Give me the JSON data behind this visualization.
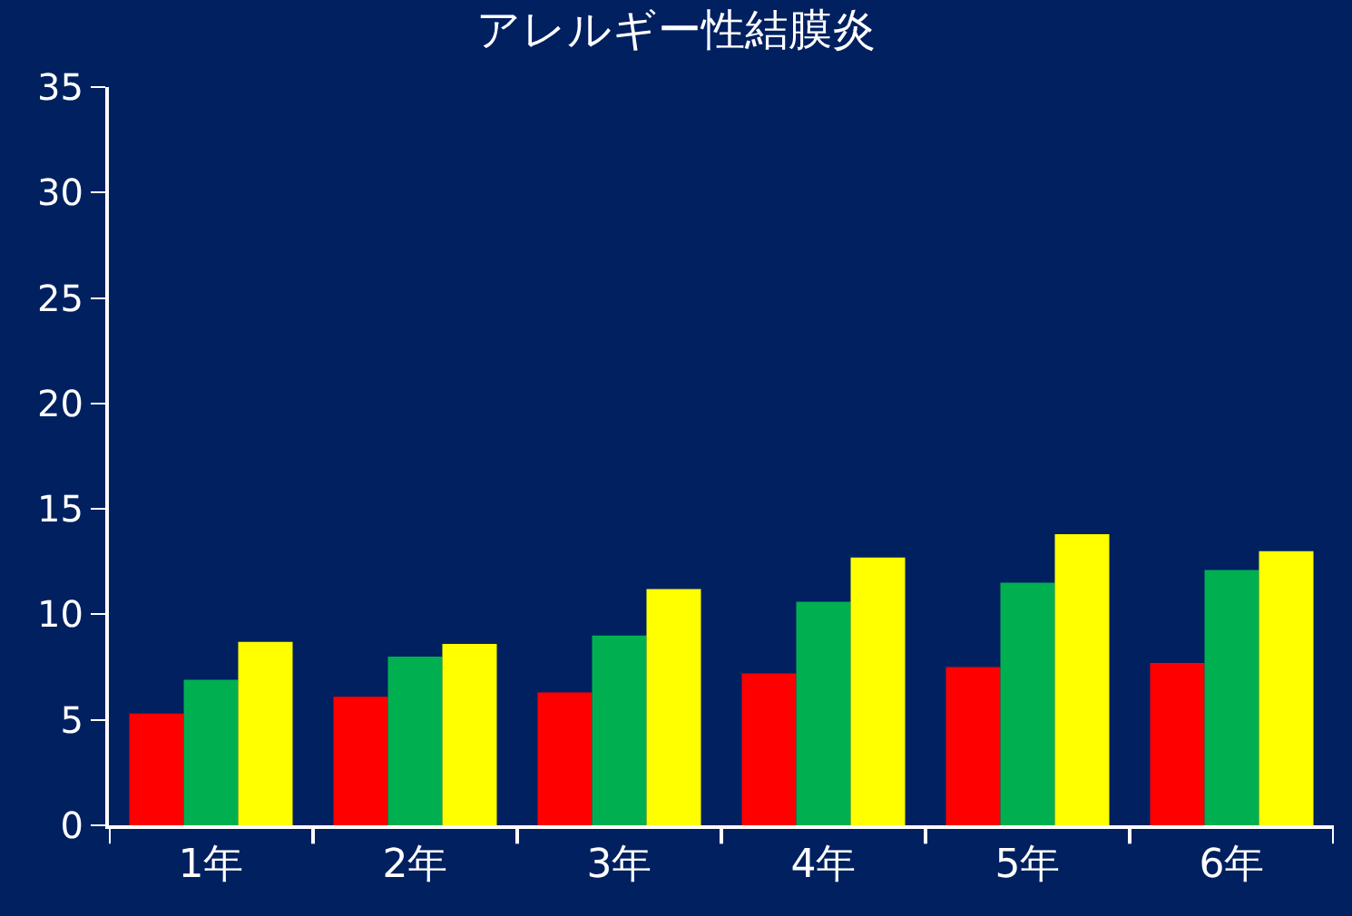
{
  "chart_data": {
    "type": "bar",
    "title": "アレルギー性結膜炎",
    "categories": [
      "1年",
      "2年",
      "3年",
      "4年",
      "5年",
      "6年"
    ],
    "series": [
      {
        "color": "#ff0000",
        "values": [
          5.3,
          6.1,
          6.3,
          7.2,
          7.5,
          7.7
        ]
      },
      {
        "color": "#00b050",
        "values": [
          6.9,
          8.0,
          9.0,
          10.6,
          11.5,
          12.1
        ]
      },
      {
        "color": "#ffff00",
        "values": [
          8.7,
          8.6,
          11.2,
          12.7,
          13.8,
          13.0
        ]
      }
    ],
    "ylim": [
      0,
      35
    ],
    "yticks": [
      0,
      5,
      10,
      15,
      20,
      25,
      30,
      35
    ],
    "grid": false
  }
}
